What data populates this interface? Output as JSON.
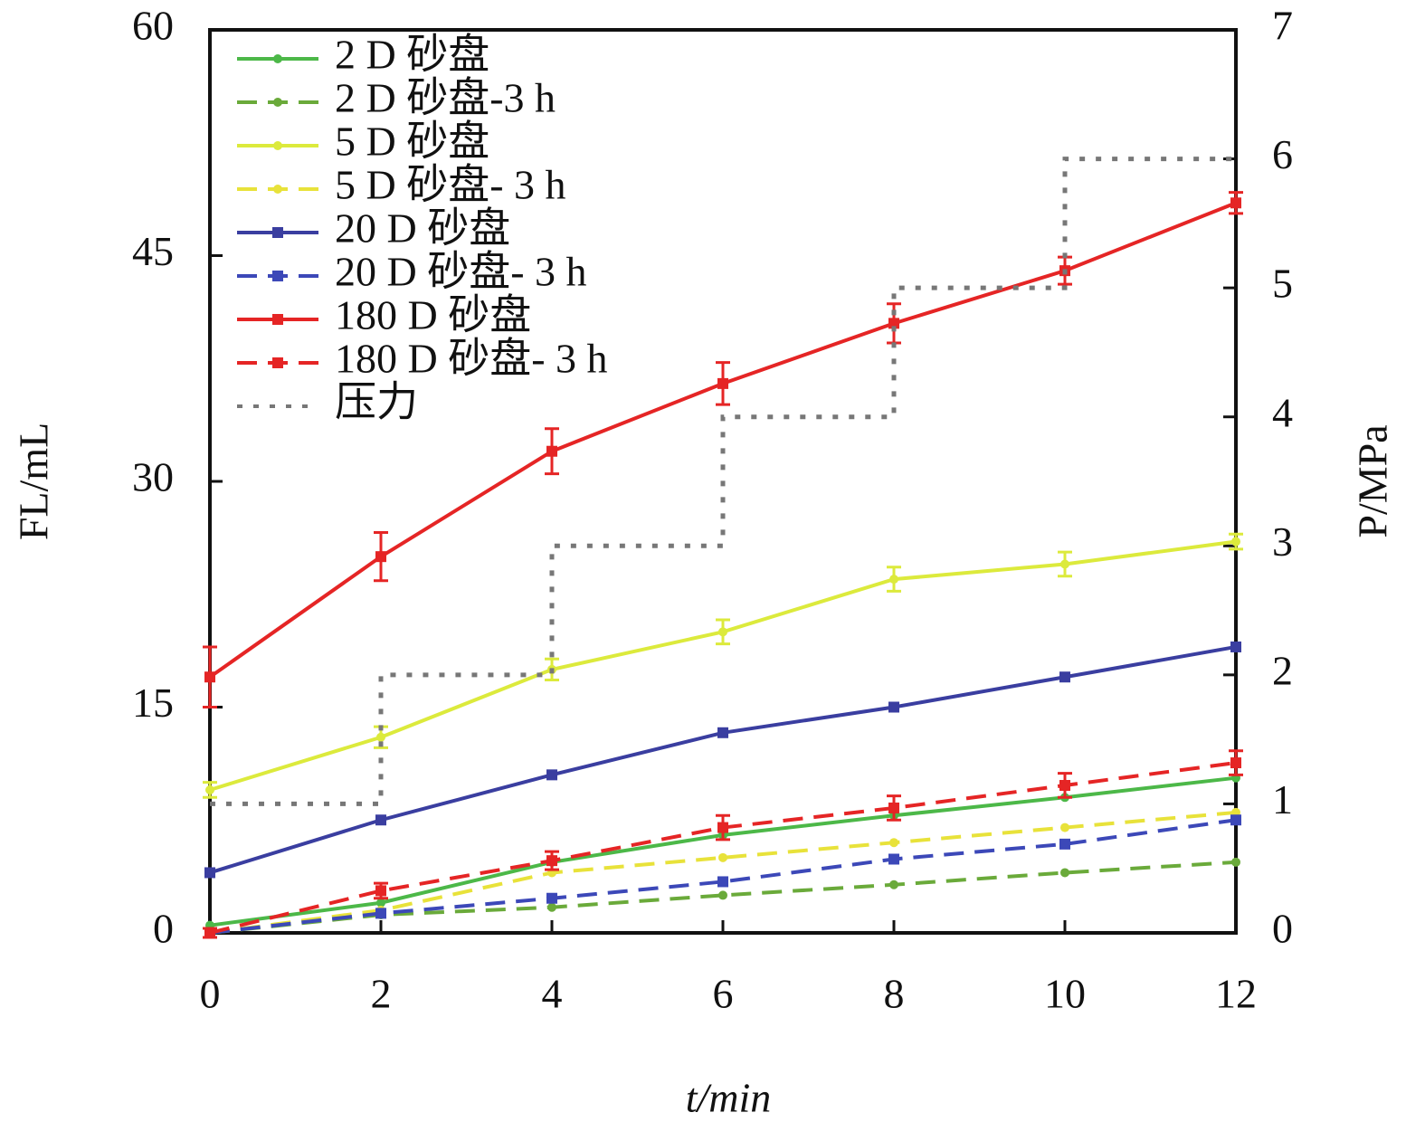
{
  "chart_data": {
    "type": "line",
    "x_label": "t/min",
    "y_label": "FL/mL",
    "y2_label": "P/MPa",
    "x": [
      0,
      2,
      4,
      6,
      8,
      10,
      12
    ],
    "xlim": [
      0,
      12
    ],
    "xticks": [
      0,
      2,
      4,
      6,
      8,
      10,
      12
    ],
    "ylim": [
      0,
      60
    ],
    "yticks": [
      0,
      15,
      30,
      45,
      60
    ],
    "y2lim": [
      0,
      7
    ],
    "y2ticks": [
      0,
      1,
      2,
      3,
      4,
      5,
      6,
      7
    ],
    "legend": "upper left",
    "series": [
      {
        "name": "2 D 砂盘",
        "color": "#4cb848",
        "dash": "solid",
        "marker": "circle",
        "values": [
          0.5,
          2,
          4.7,
          6.5,
          7.8,
          9,
          10.3
        ]
      },
      {
        "name": "2 D 砂盘-3 h",
        "color": "#6aaa3a",
        "dash": "dashed",
        "marker": "circle",
        "values": [
          0,
          1.2,
          1.7,
          2.5,
          3.2,
          4,
          4.7
        ]
      },
      {
        "name": "5 D 砂盘",
        "color": "#dcea3c",
        "dash": "solid",
        "marker": "tri",
        "values": [
          9.5,
          13,
          17.5,
          20,
          23.5,
          24.5,
          26
        ],
        "errors": [
          0.5,
          0.7,
          0.7,
          0.8,
          0.8,
          0.8,
          0.5
        ]
      },
      {
        "name": "5 D 砂盘- 3 h",
        "color": "#e8e23a",
        "dash": "dashed",
        "marker": "circle",
        "values": [
          0,
          1.5,
          4,
          5,
          6,
          7,
          8
        ]
      },
      {
        "name": "20 D 砂盘",
        "color": "#3a3ea0",
        "dash": "solid",
        "marker": "square",
        "values": [
          4,
          7.5,
          10.5,
          13.3,
          15,
          17,
          19
        ]
      },
      {
        "name": "20 D 砂盘- 3 h",
        "color": "#3c48b8",
        "dash": "dashed",
        "marker": "square",
        "values": [
          0,
          1.3,
          2.3,
          3.4,
          4.9,
          5.9,
          7.5
        ]
      },
      {
        "name": "180 D 砂盘",
        "color": "#e52525",
        "dash": "solid",
        "marker": "square",
        "values": [
          17,
          25,
          32,
          36.5,
          40.5,
          44,
          48.5
        ],
        "errors": [
          2,
          1.6,
          1.5,
          1.4,
          1.3,
          0.9,
          0.7
        ]
      },
      {
        "name": "180 D 砂盘- 3 h",
        "color": "#e52525",
        "dash": "dashed",
        "marker": "square",
        "values": [
          0,
          2.8,
          4.8,
          7,
          8.3,
          9.8,
          11.3
        ],
        "errors": [
          0.3,
          0.5,
          0.6,
          0.8,
          0.8,
          0.8,
          0.8
        ]
      },
      {
        "name": "压力",
        "color": "#777777",
        "dash": "dotted",
        "marker": "none",
        "axis": "y2",
        "x": [
          0,
          2,
          2,
          4,
          4,
          6,
          6,
          8,
          8,
          10,
          10,
          12
        ],
        "values": [
          1,
          1,
          2,
          2,
          3,
          3,
          4,
          4,
          5,
          5,
          6,
          6
        ]
      }
    ]
  }
}
